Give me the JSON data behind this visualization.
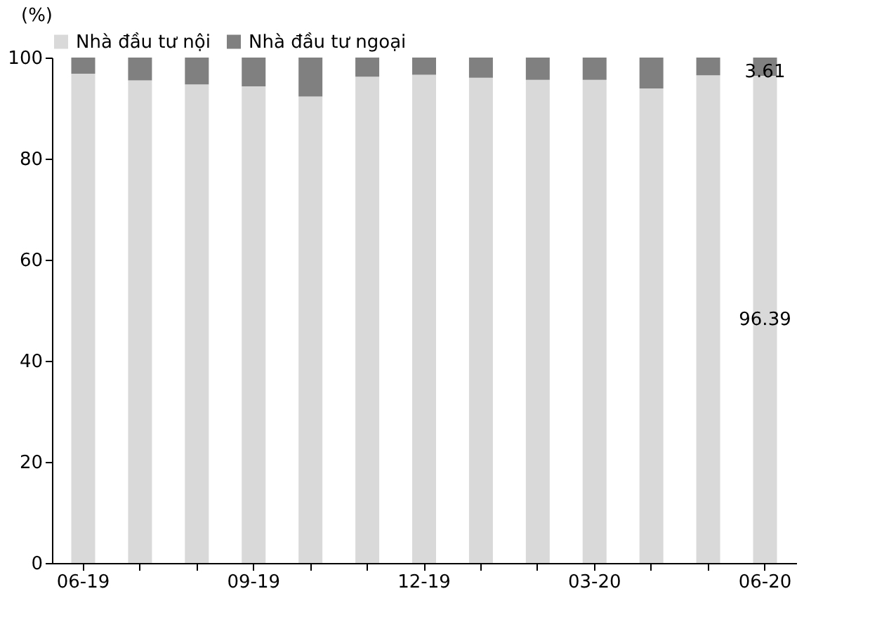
{
  "chart_data": {
    "type": "bar",
    "stacked": true,
    "ylabel": "(%)",
    "categories": [
      "06-19",
      null,
      null,
      "09-19",
      null,
      null,
      "12-19",
      null,
      null,
      "03-20",
      null,
      null,
      "06-20"
    ],
    "series": [
      {
        "name": "Nhà đầu tư nội",
        "color": "#d9d9d9",
        "values": [
          96.8,
          95.5,
          94.7,
          94.3,
          92.3,
          96.2,
          96.6,
          96.0,
          95.6,
          95.6,
          93.9,
          96.5,
          96.39
        ],
        "value_labels": [
          null,
          null,
          null,
          null,
          null,
          null,
          null,
          null,
          null,
          null,
          null,
          null,
          "96.39"
        ]
      },
      {
        "name": "Nhà đầu tư ngoại",
        "color": "#808080",
        "values": [
          3.2,
          4.5,
          5.3,
          5.7,
          7.7,
          3.8,
          3.4,
          4.0,
          4.4,
          4.4,
          6.1,
          3.5,
          3.61
        ],
        "value_labels": [
          null,
          null,
          null,
          null,
          null,
          null,
          null,
          null,
          null,
          null,
          null,
          null,
          "3.61"
        ]
      }
    ],
    "ylim": [
      0,
      100
    ],
    "yticks": [
      0,
      20,
      40,
      60,
      80,
      100
    ],
    "grid": false,
    "legend": "top"
  }
}
